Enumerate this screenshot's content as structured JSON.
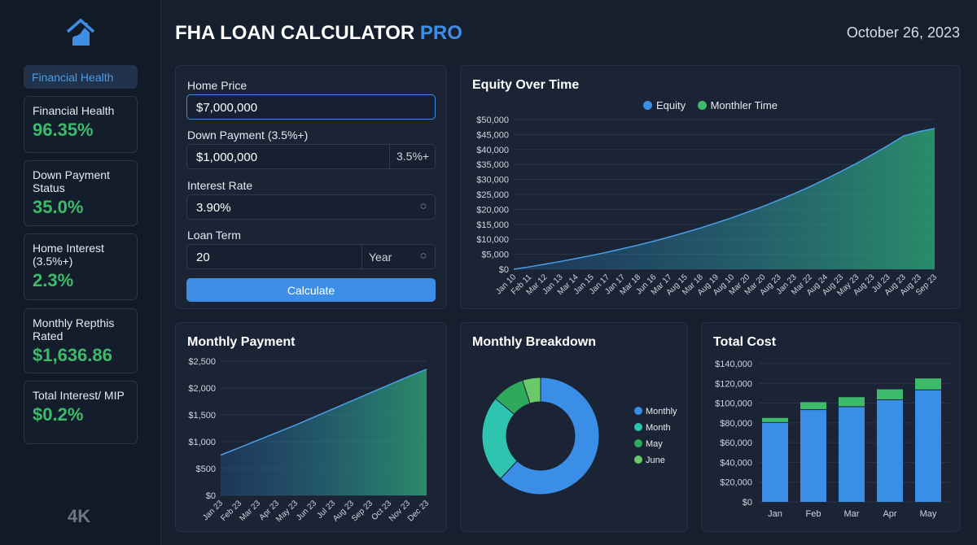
{
  "sidebar": {
    "logo": "house-chart-logo",
    "nav_selected": "Financial Health",
    "stats": [
      {
        "label": "Financial Health",
        "value": "96.35%"
      },
      {
        "label": "Down Payment Status",
        "value": "35.0%"
      },
      {
        "label": "Home Interest (3.5%+)",
        "value": "2.3%"
      },
      {
        "label": "Monthly Repthis Rated",
        "value": "$1,636.86"
      },
      {
        "label": "Total Interest/ MIP",
        "value": "$0.2%"
      }
    ],
    "badge": "4K"
  },
  "header": {
    "title": "FHA LOAN CALCULATOR",
    "title_accent": "PRO",
    "date": "October 26, 2023"
  },
  "form": {
    "home_price_label": "Home Price",
    "home_price": "$7,000,000",
    "down_label": "Down Payment (3.5%+)",
    "down_value": "$1,000,000",
    "down_suffix": "3.5%+",
    "rate_label": "Interest Rate",
    "rate_value": "3.90%",
    "term_label": "Loan Term",
    "term_value": "20",
    "term_unit": "Year",
    "calculate": "Calculate"
  },
  "colors": {
    "accent": "#3d8fe6",
    "green": "#3dbb6a",
    "teal": "#2ec4b0",
    "light_green": "#6cc96a"
  },
  "chart_data": [
    {
      "type": "area",
      "title": "Equity Over Time",
      "legend": [
        "Equity",
        "Monthler Time"
      ],
      "legend_position": "top-center",
      "x": [
        "Jan 10",
        "Feb 11",
        "Mar 12",
        "Jan 13",
        "Mar 14",
        "Jan 15",
        "Jan 17",
        "Jan 17",
        "Mar 18",
        "Jun 16",
        "Mar 17",
        "Aug 15",
        "Mar 18",
        "Aug 19",
        "Aug 10",
        "Mar 20",
        "Mar 20",
        "Aug 23",
        "Jan 23",
        "Mar 22",
        "Aug 24",
        "Aug 23",
        "May 23",
        "Aug 23",
        "Jul 23",
        "Aug 23",
        "Aug 23",
        "Sep 23"
      ],
      "y": [
        0,
        800,
        1700,
        2600,
        3600,
        4600,
        5700,
        6900,
        8100,
        9400,
        10800,
        12300,
        13800,
        15500,
        17200,
        19100,
        21000,
        23100,
        25300,
        27600,
        30100,
        32700,
        35400,
        38300,
        41300,
        44500,
        46000,
        47000
      ],
      "yticks": [
        "$0",
        "$5,000",
        "$10,000",
        "$15,000",
        "$20,000",
        "$25,000",
        "$30,000",
        "$35,000",
        "$40,000",
        "$45,000",
        "$50,000"
      ],
      "ylim": [
        0,
        50000
      ],
      "grid": true
    },
    {
      "type": "area",
      "title": "Monthly Payment",
      "x": [
        "Jan 23",
        "Feb 23",
        "Mar 23",
        "Apr 23",
        "May 23",
        "Jun 23",
        "Jul 23",
        "Aug 23",
        "Sep 23",
        "Oct 23",
        "Nov 23",
        "Dec 23"
      ],
      "y": [
        750,
        890,
        1030,
        1170,
        1310,
        1460,
        1610,
        1760,
        1910,
        2060,
        2210,
        2350
      ],
      "yticks": [
        "$0",
        "$500",
        "$1,000",
        "$1,500",
        "$2,000",
        "$2,500"
      ],
      "ylim": [
        0,
        2500
      ],
      "grid": true
    },
    {
      "type": "pie",
      "title": "Monthly Breakdown",
      "donut": true,
      "labels": [
        "Monthly",
        "Month",
        "May",
        "June"
      ],
      "values": [
        62,
        24,
        9,
        5
      ],
      "colors": [
        "#3a8ee6",
        "#2ec4b0",
        "#2eaa5c",
        "#6cc96a"
      ],
      "legend_position": "right"
    },
    {
      "type": "bar",
      "stacked": true,
      "title": "Total Cost",
      "categories": [
        "Jan",
        "Feb",
        "Mar",
        "Apr",
        "May"
      ],
      "series": [
        {
          "values": [
            80000,
            93000,
            96000,
            103000,
            113000
          ]
        },
        {
          "values": [
            5000,
            8000,
            10000,
            11000,
            12000
          ]
        }
      ],
      "yticks": [
        "$0",
        "$20,000",
        "$40,000",
        "$60,000",
        "$80,000",
        "$100,000",
        "$120,000",
        "$140,000"
      ],
      "ylim": [
        0,
        140000
      ],
      "grid": true
    }
  ]
}
